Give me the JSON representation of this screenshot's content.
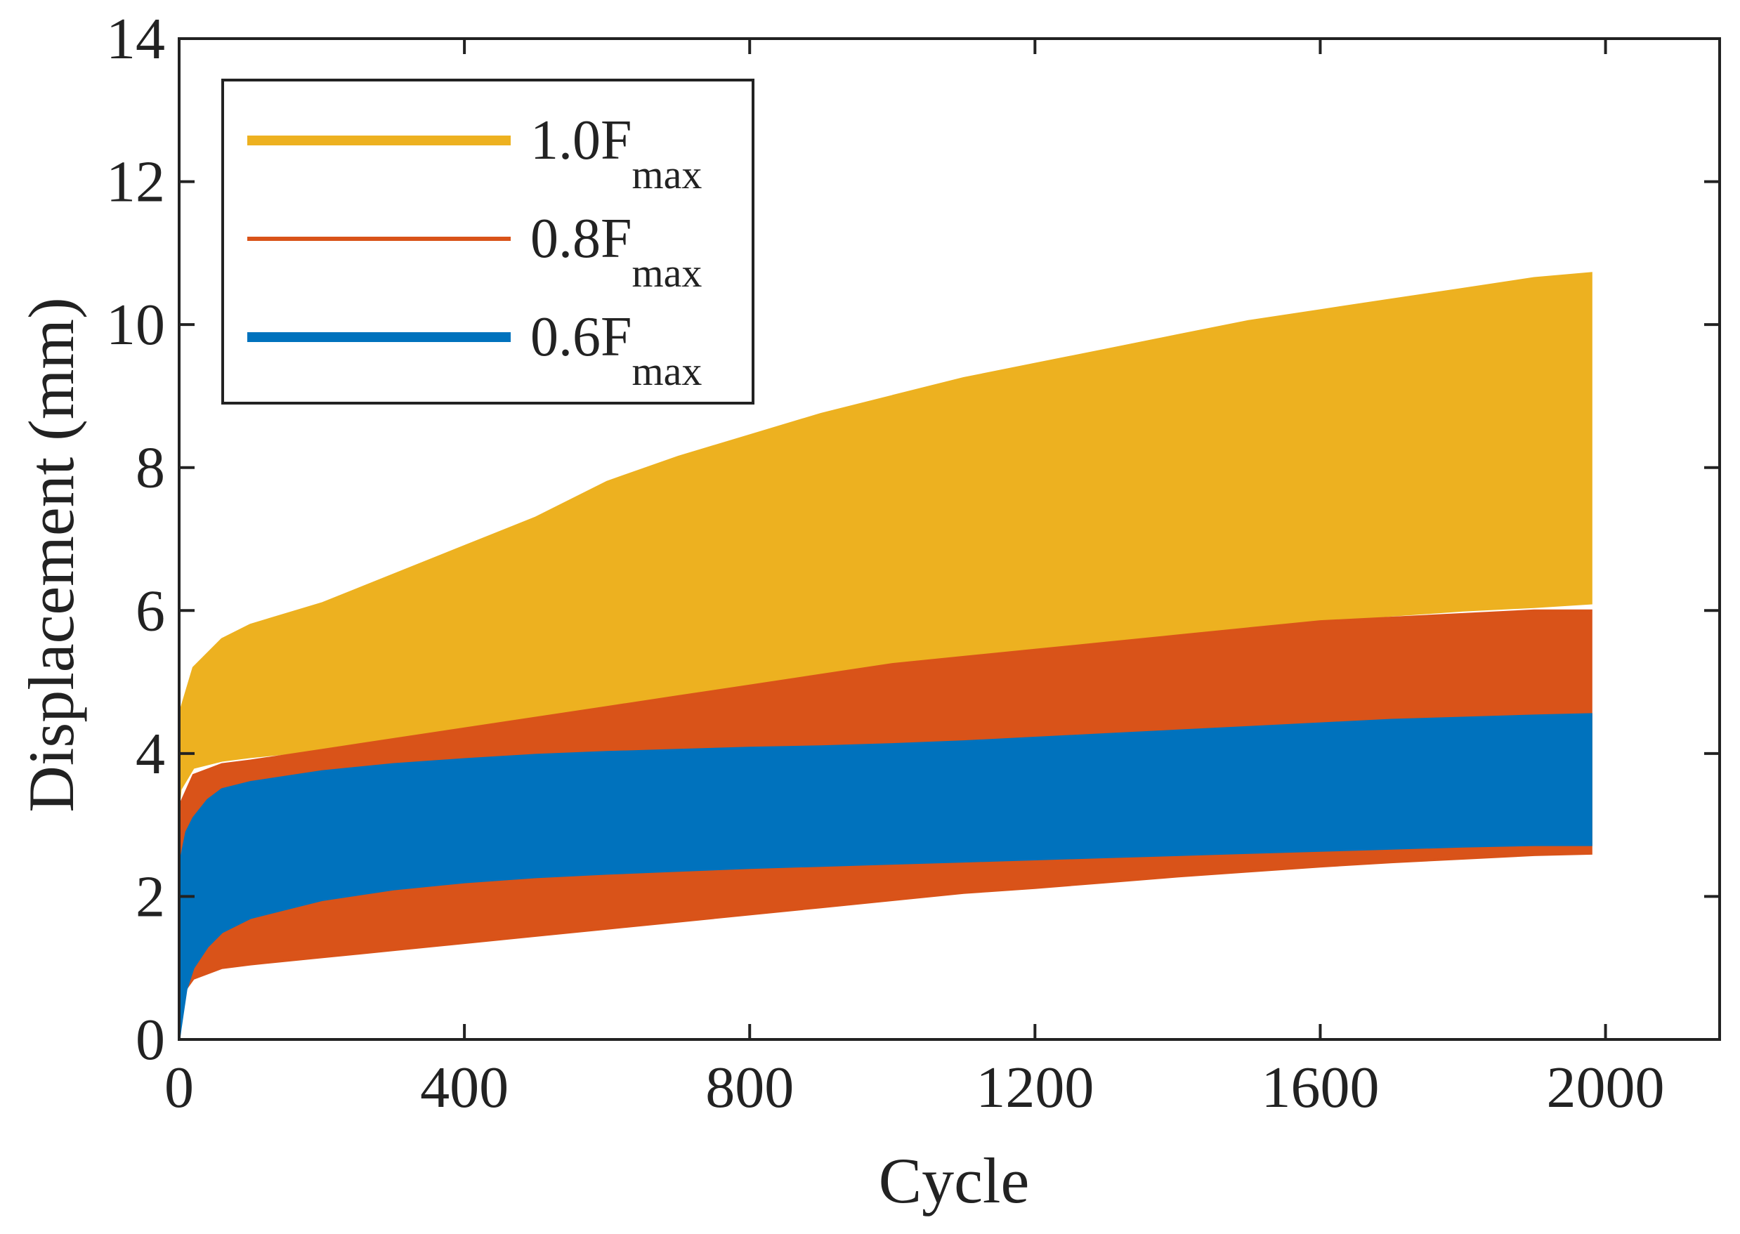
{
  "chart_data": {
    "type": "area",
    "xlabel": "Cycle",
    "ylabel": "Displacement (mm)",
    "xlim": [
      0,
      2160
    ],
    "ylim": [
      0,
      14
    ],
    "xticks": [
      0,
      400,
      800,
      1200,
      1600,
      2000
    ],
    "yticks": [
      0,
      2,
      4,
      6,
      8,
      10,
      12,
      14
    ],
    "grid": false,
    "legend": "top-left",
    "colors": {
      "f10": "#EDB120",
      "f08": "#D95319",
      "f06": "#0072BD"
    },
    "series": [
      {
        "name": "1.0F",
        "name_sub": "max",
        "color": "#EDB120",
        "x": [
          0,
          2,
          20,
          60,
          100,
          200,
          300,
          400,
          500,
          600,
          700,
          800,
          900,
          1000,
          1100,
          1200,
          1300,
          1400,
          1500,
          1600,
          1700,
          1800,
          1900,
          1980
        ],
        "upper": [
          3.3,
          4.6,
          5.2,
          5.6,
          5.8,
          6.1,
          6.5,
          6.9,
          7.3,
          7.8,
          8.15,
          8.45,
          8.75,
          9.0,
          9.25,
          9.45,
          9.65,
          9.85,
          10.05,
          10.2,
          10.35,
          10.5,
          10.65,
          10.72
        ],
        "lower": [
          3.3,
          3.5,
          3.8,
          3.9,
          3.95,
          4.05,
          4.2,
          4.35,
          4.5,
          4.65,
          4.8,
          4.95,
          5.1,
          5.25,
          5.35,
          5.45,
          5.55,
          5.65,
          5.75,
          5.85,
          5.93,
          6.0,
          6.05,
          6.1
        ]
      },
      {
        "name": "0.8F",
        "name_sub": "max",
        "color": "#D95319",
        "x": [
          0,
          2,
          20,
          60,
          100,
          200,
          300,
          400,
          500,
          600,
          700,
          800,
          900,
          1000,
          1100,
          1200,
          1300,
          1400,
          1500,
          1600,
          1700,
          1800,
          1900,
          1980
        ],
        "upper": [
          2.6,
          3.3,
          3.7,
          3.85,
          3.9,
          4.05,
          4.2,
          4.35,
          4.5,
          4.65,
          4.8,
          4.95,
          5.1,
          5.25,
          5.35,
          5.45,
          5.55,
          5.65,
          5.75,
          5.85,
          5.9,
          5.95,
          6.0,
          6.0
        ],
        "lower": [
          0.1,
          0.6,
          0.85,
          1.0,
          1.05,
          1.15,
          1.25,
          1.35,
          1.45,
          1.55,
          1.65,
          1.75,
          1.85,
          1.95,
          2.05,
          2.12,
          2.2,
          2.28,
          2.35,
          2.42,
          2.48,
          2.53,
          2.58,
          2.6
        ]
      },
      {
        "name": "0.6F",
        "name_sub": "max",
        "color": "#0072BD",
        "x": [
          0,
          2,
          10,
          20,
          40,
          60,
          100,
          200,
          300,
          400,
          500,
          600,
          700,
          800,
          900,
          1000,
          1100,
          1200,
          1300,
          1400,
          1500,
          1600,
          1700,
          1800,
          1900,
          1980
        ],
        "upper": [
          2.2,
          2.5,
          2.9,
          3.1,
          3.35,
          3.5,
          3.6,
          3.75,
          3.85,
          3.92,
          3.98,
          4.02,
          4.05,
          4.08,
          4.1,
          4.13,
          4.17,
          4.22,
          4.27,
          4.32,
          4.37,
          4.42,
          4.47,
          4.5,
          4.53,
          4.55
        ],
        "lower": [
          0.0,
          0.15,
          0.7,
          1.0,
          1.3,
          1.5,
          1.7,
          1.95,
          2.1,
          2.2,
          2.27,
          2.32,
          2.36,
          2.4,
          2.43,
          2.46,
          2.49,
          2.52,
          2.55,
          2.58,
          2.61,
          2.64,
          2.67,
          2.7,
          2.72,
          2.72
        ]
      }
    ]
  }
}
